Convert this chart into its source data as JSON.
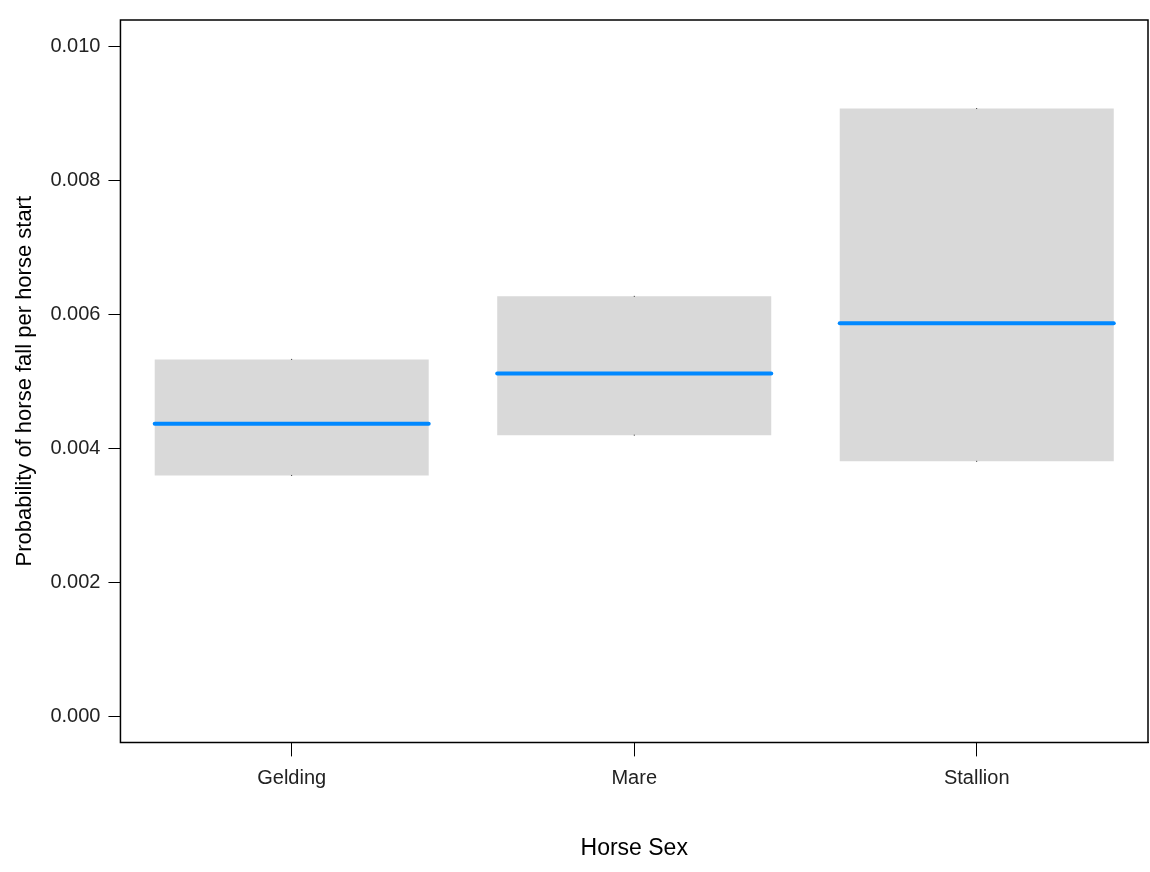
{
  "chart_data": {
    "type": "box",
    "xlabel": "Horse Sex",
    "ylabel": "Probability of horse fall per horse start",
    "categories": [
      "Gelding",
      "Mare",
      "Stallion"
    ],
    "boxes": [
      {
        "low": 0.0036,
        "q1": 0.0036,
        "median": 0.00437,
        "q3": 0.00533,
        "high": 0.00533
      },
      {
        "low": 0.0042,
        "q1": 0.0042,
        "median": 0.00512,
        "q3": 0.00627,
        "high": 0.00627
      },
      {
        "low": 0.00381,
        "q1": 0.00381,
        "median": 0.00587,
        "q3": 0.00907,
        "high": 0.00907
      }
    ],
    "color": "#d9d9d9",
    "ylim": [
      -0.00038,
      0.01039
    ],
    "yticks": [
      {
        "value": 0,
        "label": "0.000"
      },
      {
        "value": 0.002,
        "label": "0.002"
      },
      {
        "value": 0.004,
        "label": "0.004"
      },
      {
        "value": 0.006,
        "label": "0.006"
      },
      {
        "value": 0.008,
        "label": "0.008"
      },
      {
        "value": 0.01,
        "label": "0.010"
      }
    ],
    "grid": false,
    "legend": false
  }
}
